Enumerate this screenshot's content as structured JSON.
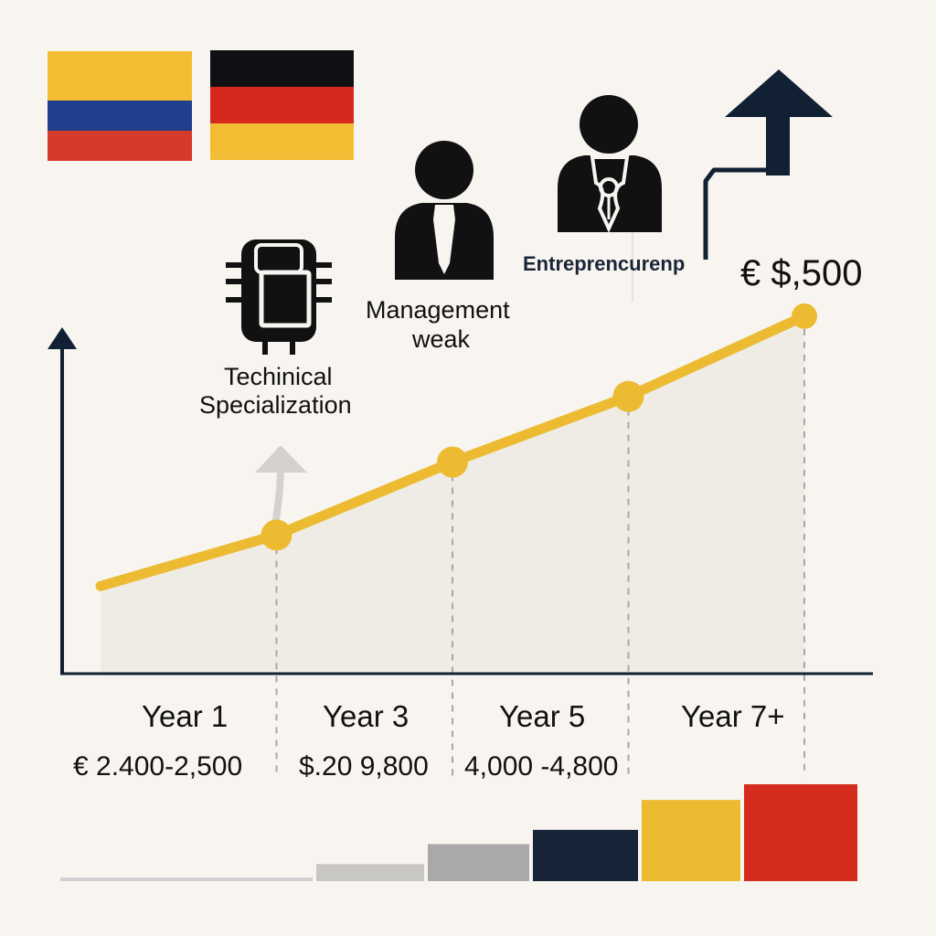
{
  "flags": {
    "colombia": [
      "#f2bd33",
      "#1f3f8c",
      "#d63a2a"
    ],
    "germany": [
      "#0f0f14",
      "#d6281d",
      "#f2bd33"
    ]
  },
  "colors": {
    "line": "#ecbb32",
    "axis": "#122033",
    "area": "#efece6",
    "dash": "#a7a7a7",
    "icon": "#111111",
    "arrow": "#122033"
  },
  "icons": {
    "technical": "chip-icon",
    "management": "person-tie-icon",
    "entrepreneurship": "person-pen-nib-icon",
    "growth": "up-arrow-icon"
  },
  "labels": {
    "technical_line1": "Techinical",
    "technical_line2": "Specialization",
    "management_line1": "Management",
    "management_line2": "weak",
    "entrepreneurship": "Entreprencurenp",
    "top_salary": "€ $,500"
  },
  "chart_data": {
    "type": "line",
    "title": "",
    "xlabel": "",
    "ylabel": "",
    "categories": [
      "Year 1",
      "Year 3",
      "Year 5",
      "Year 7+"
    ],
    "salary_labels": [
      "€ 2.400-2,500",
      "$.20 9,800",
      "4,000 -4,800",
      ""
    ],
    "x": [
      0,
      1,
      2,
      3,
      4
    ],
    "values": [
      2200,
      2900,
      3900,
      4800,
      5900
    ],
    "ylim": [
      1000,
      6600
    ],
    "markers_at": [
      1,
      2,
      3,
      4
    ],
    "bar_strip": [
      {
        "value": 0.1,
        "color": "#cfcfcf"
      },
      {
        "value": 1.2,
        "color": "#c9c7c3"
      },
      {
        "value": 2.6,
        "color": "#a9a9a9"
      },
      {
        "value": 3.6,
        "color": "#172438"
      },
      {
        "value": 5.7,
        "color": "#ecbb32"
      },
      {
        "value": 6.8,
        "color": "#d62c1d"
      }
    ],
    "legend": "none",
    "grid": false
  }
}
